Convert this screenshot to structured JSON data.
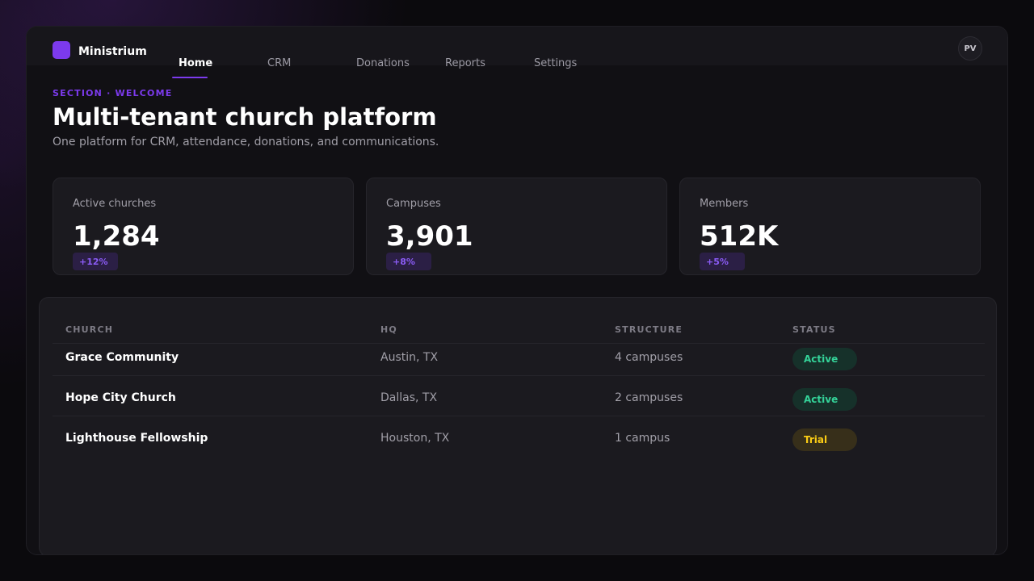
{
  "app": {
    "brand": "Ministrium",
    "avatar_initials": "PV",
    "accent_color": "#7c3aed"
  },
  "nav": {
    "items": [
      {
        "label": "Home",
        "active": true
      },
      {
        "label": "CRM",
        "active": false
      },
      {
        "label": "Donations",
        "active": false
      },
      {
        "label": "Reports",
        "active": false
      },
      {
        "label": "Settings",
        "active": false
      }
    ]
  },
  "header": {
    "eyebrow": "SECTION · WELCOME",
    "title": "Multi-tenant church platform",
    "subtitle": "One platform for CRM, attendance, donations, and communications."
  },
  "stats": [
    {
      "label": "Active churches",
      "value": "1,284",
      "delta": "+12%"
    },
    {
      "label": "Campuses",
      "value": "3,901",
      "delta": "+8%"
    },
    {
      "label": "Members",
      "value": "512K",
      "delta": "+5%"
    }
  ],
  "table": {
    "columns": [
      "CHURCH",
      "HQ",
      "STRUCTURE",
      "STATUS"
    ],
    "rows": [
      {
        "church": "Grace Community",
        "hq": "Austin, TX",
        "structure": "4 campuses",
        "status": "Active"
      },
      {
        "church": "Hope City Church",
        "hq": "Dallas, TX",
        "structure": "2 campuses",
        "status": "Active"
      },
      {
        "church": "Lighthouse Fellowship",
        "hq": "Houston, TX",
        "structure": "1 campus",
        "status": "Trial"
      }
    ]
  },
  "colors": {
    "status_active": "#34d399",
    "status_trial": "#facc15"
  }
}
